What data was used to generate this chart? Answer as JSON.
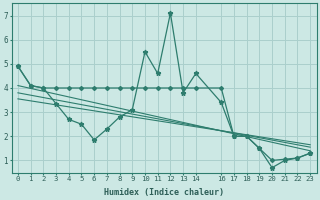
{
  "xlabel": "Humidex (Indice chaleur)",
  "background_color": "#cce8e4",
  "line_color": "#2e7d6e",
  "grid_color": "#aacfcc",
  "xlim": [
    -0.5,
    23.5
  ],
  "ylim": [
    0.5,
    7.5
  ],
  "xticks": [
    0,
    1,
    2,
    3,
    4,
    5,
    6,
    7,
    8,
    9,
    10,
    11,
    12,
    13,
    14,
    16,
    17,
    18,
    19,
    20,
    21,
    22,
    23
  ],
  "yticks": [
    1,
    2,
    3,
    4,
    5,
    6,
    7
  ],
  "series_spiky": {
    "x": [
      0,
      1,
      2,
      3,
      4,
      5,
      6,
      7,
      8,
      9,
      10,
      11,
      12,
      13,
      14,
      16,
      17,
      18,
      19,
      20,
      21,
      22,
      23
    ],
    "y": [
      4.9,
      4.1,
      4.0,
      3.35,
      2.7,
      2.5,
      1.85,
      2.3,
      2.8,
      3.1,
      5.5,
      4.6,
      7.1,
      3.8,
      4.6,
      3.4,
      2.0,
      2.0,
      1.5,
      0.7,
      1.0,
      1.1,
      1.3
    ]
  },
  "series_flat": {
    "x": [
      0,
      1,
      2,
      3,
      4,
      5,
      6,
      7,
      8,
      9,
      10,
      11,
      12,
      13,
      14,
      16,
      17,
      18,
      19,
      20,
      21,
      22,
      23
    ],
    "y": [
      4.9,
      4.1,
      4.0,
      4.0,
      4.0,
      4.0,
      4.0,
      4.0,
      4.0,
      4.0,
      4.0,
      4.0,
      4.0,
      4.0,
      4.0,
      4.0,
      2.0,
      2.0,
      1.5,
      1.0,
      1.05,
      1.1,
      1.3
    ]
  },
  "trend_lines": [
    {
      "x": [
        0,
        23
      ],
      "y": [
        4.1,
        1.4
      ]
    },
    {
      "x": [
        0,
        23
      ],
      "y": [
        3.8,
        1.55
      ]
    },
    {
      "x": [
        0,
        23
      ],
      "y": [
        3.55,
        1.65
      ]
    }
  ]
}
